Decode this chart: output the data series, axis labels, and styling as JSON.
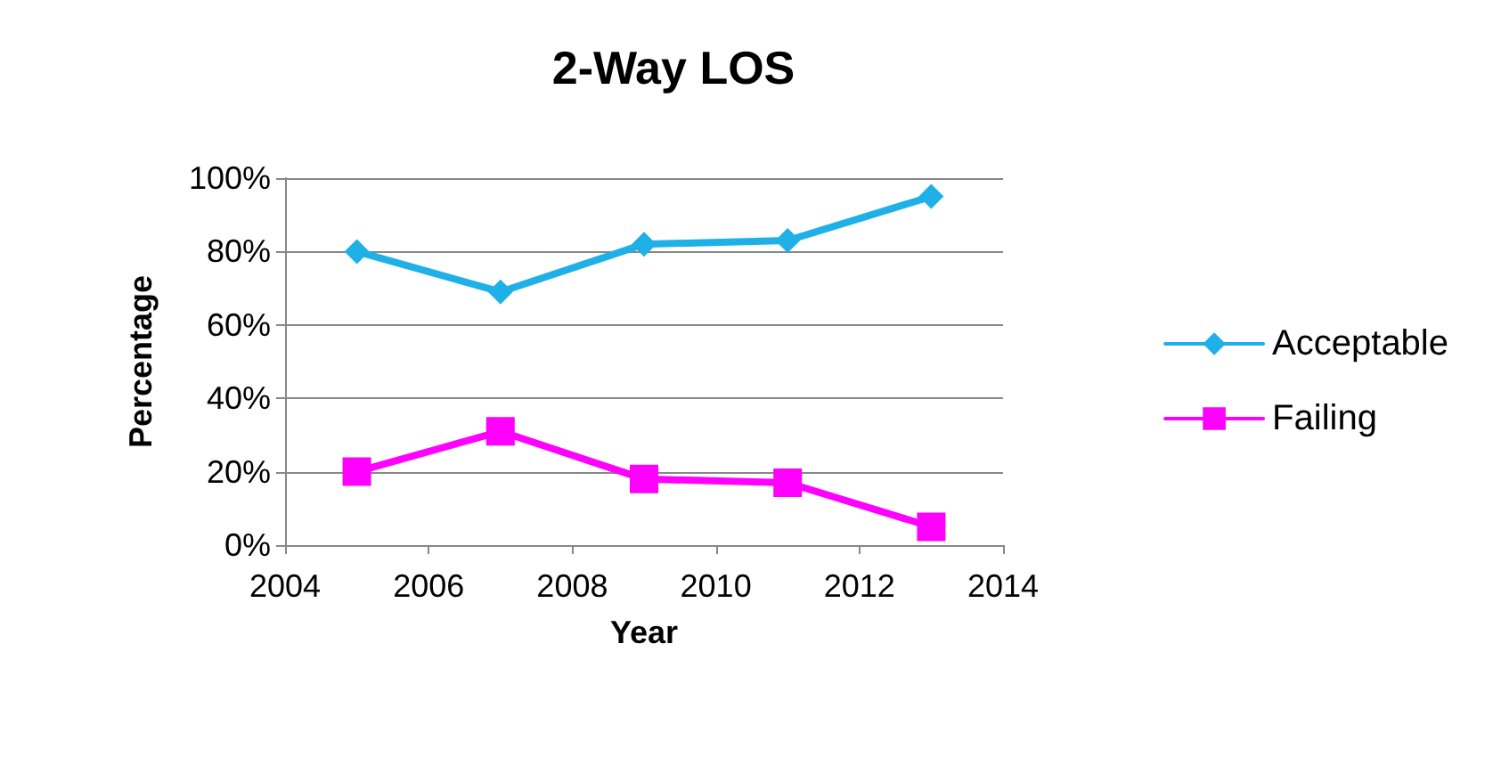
{
  "chart_data": {
    "type": "line",
    "title": "2-Way LOS",
    "xlabel": "Year",
    "ylabel": "Percentage",
    "x": [
      2005,
      2007,
      2009,
      2011,
      2013
    ],
    "series": [
      {
        "name": "Acceptable",
        "color": "#1fb0e8",
        "marker": "diamond",
        "values": [
          80,
          69,
          82,
          83,
          95
        ]
      },
      {
        "name": "Failing",
        "color": "#ff00ff",
        "marker": "square",
        "values": [
          20,
          31,
          18,
          17,
          5
        ]
      }
    ],
    "xlim": [
      2004,
      2014
    ],
    "xticks": [
      2004,
      2006,
      2008,
      2010,
      2012,
      2014
    ],
    "ylim": [
      0,
      100
    ],
    "yticks": [
      {
        "value": 0,
        "label": "0%"
      },
      {
        "value": 20,
        "label": "20%"
      },
      {
        "value": 40,
        "label": "40%"
      },
      {
        "value": 60,
        "label": "60%"
      },
      {
        "value": 80,
        "label": "80%"
      },
      {
        "value": 100,
        "label": "100%"
      }
    ],
    "grid": "y",
    "legend": "right",
    "line_style": "solid"
  }
}
